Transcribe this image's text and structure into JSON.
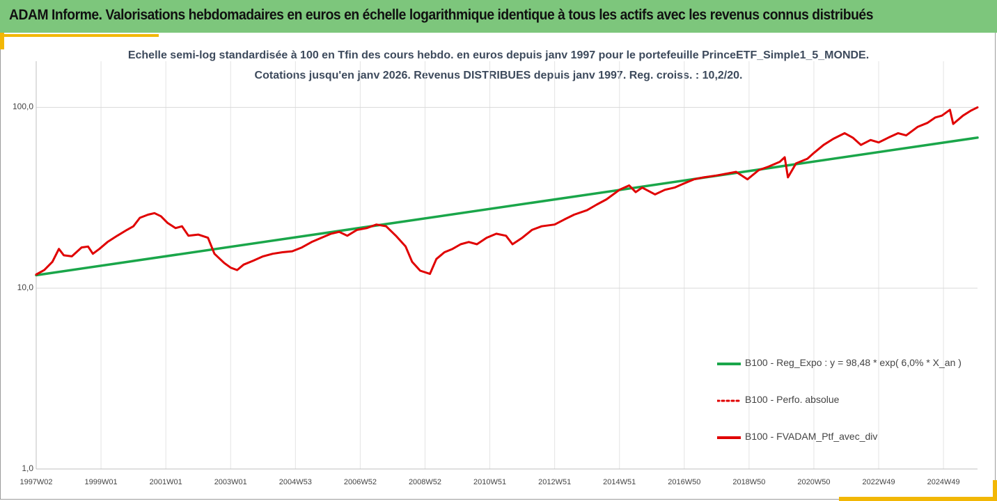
{
  "header": {
    "title": "ADAM Informe. Valorisations hebdomadaires en euros en échelle logarithmique identique à tous les actifs avec les revenus connus distribués",
    "background_color": "#7dc67c",
    "accent_color": "#f2b705"
  },
  "chart_data": {
    "type": "line",
    "subtitle_line1": "Echelle semi-log standardisée  à 100 en Tfin des cours hebdo.  en euros depuis janv 1997 pour le portefeuille PrinceETF_Simple1_5_MONDE.",
    "subtitle_line2": "Cotations  jusqu'en janv 2026. Revenus DISTRIBUES depuis janv 1997. Reg. croiss. : 10,2/20.",
    "y_scale": "log",
    "ylim": [
      1,
      180
    ],
    "y_ticks": [
      "100,0",
      "10,0",
      "1,0"
    ],
    "y_tick_values": [
      100,
      10,
      1
    ],
    "xlim": [
      1997.0,
      2026.05
    ],
    "x_tick_labels": [
      "1997W02",
      "1999W01",
      "2001W01",
      "2003W01",
      "2004W53",
      "2006W52",
      "2008W52",
      "2010W51",
      "2012W51",
      "2014W51",
      "2016W50",
      "2018W50",
      "2020W50",
      "2022W49",
      "2024W49"
    ],
    "x_tick_values": [
      1997.0,
      1999.0,
      2001.0,
      2003.0,
      2005.0,
      2007.0,
      2009.0,
      2011.0,
      2013.0,
      2015.0,
      2017.0,
      2019.0,
      2021.0,
      2023.0,
      2025.0
    ],
    "grid": "vertical and horizontal",
    "legend_position": "bottom-right",
    "series": [
      {
        "name": "B100 - Reg_Expo : y = 98,48 * exp( 6,0% *  X_an )",
        "color": "#1aa64a",
        "style": "solid",
        "x": [
          1997.0,
          2026.05
        ],
        "values": [
          11.8,
          68.0
        ]
      },
      {
        "name": "B100 - Perfo. absolue",
        "color": "#e00000",
        "style": "dotted",
        "x": [],
        "values": []
      },
      {
        "name": "B100 - FVADAM_Ptf_avec_div",
        "color": "#e00000",
        "style": "solid",
        "x": [
          1997.0,
          1997.25,
          1997.5,
          1997.7,
          1997.85,
          1998.1,
          1998.4,
          1998.6,
          1998.75,
          1998.95,
          1999.2,
          1999.5,
          1999.8,
          2000.0,
          2000.2,
          2000.45,
          2000.65,
          2000.85,
          2001.05,
          2001.3,
          2001.5,
          2001.7,
          2002.0,
          2002.3,
          2002.5,
          2002.8,
          2003.0,
          2003.2,
          2003.4,
          2003.7,
          2004.0,
          2004.3,
          2004.6,
          2004.9,
          2005.2,
          2005.5,
          2005.8,
          2006.1,
          2006.35,
          2006.6,
          2006.9,
          2007.2,
          2007.5,
          2007.8,
          2008.1,
          2008.4,
          2008.6,
          2008.85,
          2009.15,
          2009.35,
          2009.6,
          2009.85,
          2010.1,
          2010.35,
          2010.6,
          2010.9,
          2011.2,
          2011.5,
          2011.7,
          2012.0,
          2012.3,
          2012.6,
          2013.0,
          2013.3,
          2013.6,
          2014.0,
          2014.3,
          2014.6,
          2015.0,
          2015.3,
          2015.5,
          2015.7,
          2016.1,
          2016.4,
          2016.7,
          2017.0,
          2017.3,
          2017.6,
          2018.0,
          2018.3,
          2018.6,
          2018.95,
          2019.3,
          2019.6,
          2019.95,
          2020.1,
          2020.2,
          2020.45,
          2020.8,
          2021.0,
          2021.3,
          2021.6,
          2021.95,
          2022.2,
          2022.45,
          2022.75,
          2023.0,
          2023.3,
          2023.6,
          2023.85,
          2024.2,
          2024.5,
          2024.75,
          2024.95,
          2025.2,
          2025.3,
          2025.6,
          2025.85,
          2026.05
        ],
        "values": [
          11.9,
          12.6,
          14.0,
          16.5,
          15.2,
          15.0,
          16.8,
          17.0,
          15.5,
          16.5,
          18.0,
          19.5,
          21.0,
          22.0,
          24.5,
          25.5,
          26.0,
          25.0,
          23.0,
          21.5,
          22.0,
          19.5,
          19.8,
          19.0,
          15.5,
          13.8,
          13.0,
          12.6,
          13.5,
          14.2,
          15.0,
          15.5,
          15.8,
          16.0,
          16.8,
          18.0,
          19.0,
          20.0,
          20.5,
          19.5,
          21.0,
          21.5,
          22.5,
          22.0,
          19.5,
          17.0,
          14.0,
          12.5,
          12.0,
          14.5,
          15.8,
          16.5,
          17.5,
          18.0,
          17.5,
          19.0,
          20.0,
          19.5,
          17.5,
          19.0,
          21.0,
          22.0,
          22.5,
          24.0,
          25.5,
          27.0,
          29.0,
          31.0,
          35.0,
          37.0,
          34.0,
          36.0,
          33.0,
          35.0,
          36.0,
          38.0,
          40.0,
          41.0,
          42.0,
          43.0,
          44.0,
          40.0,
          45.0,
          47.0,
          50.0,
          53.0,
          41.0,
          49.0,
          52.0,
          56.0,
          62.0,
          67.0,
          72.0,
          68.0,
          62.0,
          66.0,
          64.0,
          68.0,
          72.0,
          70.0,
          78.0,
          82.0,
          88.0,
          90.0,
          97.0,
          81.0,
          90.0,
          96.0,
          100.0
        ]
      }
    ]
  }
}
